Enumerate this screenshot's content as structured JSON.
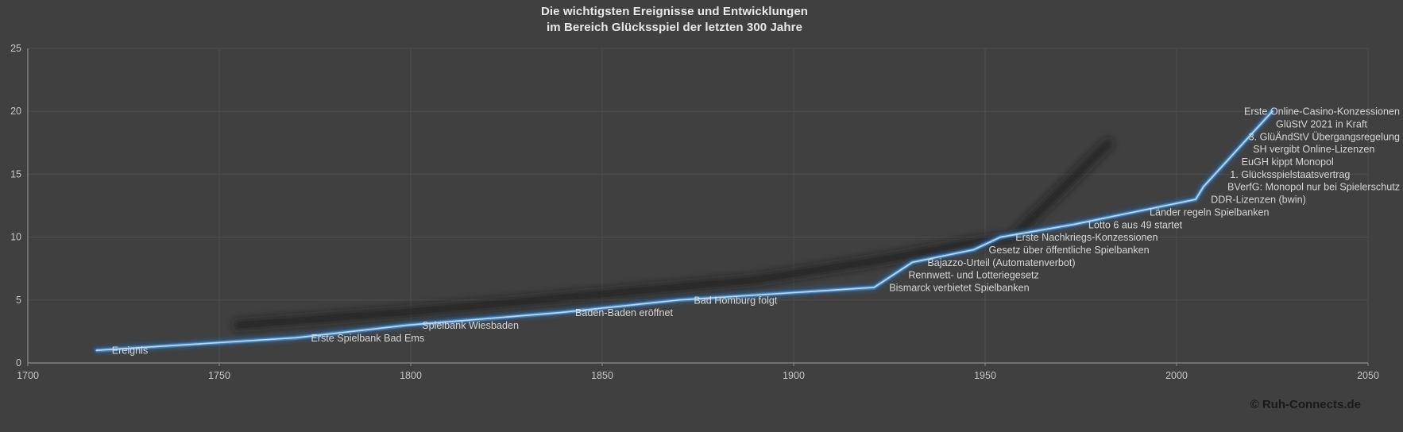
{
  "title": {
    "line1": "Die wichtigsten Ereignisse und Entwicklungen",
    "line2": "im Bereich Glücksspiel der letzten 300 Jahre"
  },
  "copyright": "© Ruh-Connects.de",
  "colors": {
    "background": "#404040",
    "grid": "#4e4e4e",
    "axis": "#8c8c8c",
    "tick_label": "#c7c7c7",
    "event_label": "#d6d6d6",
    "title": "#e8e8e8",
    "copyright": "#1a1a1a",
    "line_core": "#b9d8f2",
    "line_main": "#4f8fcc",
    "line_glow": "#2a6099",
    "shadow": "#1d1d1d"
  },
  "chart_data": {
    "type": "line",
    "title": "Die wichtigsten Ereignisse und Entwicklungen im Bereich Glücksspiel der letzten 300 Jahre",
    "series_name": "Ereignis",
    "xlabel": "",
    "ylabel": "",
    "xlim": [
      1700,
      2050
    ],
    "ylim": [
      0,
      25
    ],
    "x_ticks": [
      1700,
      1750,
      1800,
      1850,
      1900,
      1950,
      2000,
      2050
    ],
    "y_ticks": [
      0,
      5,
      10,
      15,
      20,
      25
    ],
    "grid": true,
    "legend": "none",
    "events": [
      {
        "label": "Ereignis",
        "year": 1718,
        "value": 1
      },
      {
        "label": "Erste Spielbank Bad Ems",
        "year": 1770,
        "value": 2
      },
      {
        "label": "Spielbank Wiesbaden",
        "year": 1799,
        "value": 3
      },
      {
        "label": "Baden-Baden eröffnet",
        "year": 1839,
        "value": 4
      },
      {
        "label": "Bad Homburg folgt",
        "year": 1870,
        "value": 5
      },
      {
        "label": "Bismarck verbietet Spielbanken",
        "year": 1921,
        "value": 6
      },
      {
        "label": "Rennwett- und Lotteriegesetz",
        "year": 1926,
        "value": 7
      },
      {
        "label": "Bajazzo-Urteil (Automatenverbot)",
        "year": 1931,
        "value": 8
      },
      {
        "label": "Gesetz über öffentliche Spielbanken",
        "year": 1947,
        "value": 9
      },
      {
        "label": "Erste Nachkriegs-Konzessionen",
        "year": 1954,
        "value": 10
      },
      {
        "label": "Lotto 6 aus 49 startet",
        "year": 1973,
        "value": 11
      },
      {
        "label": "Länder regeln Spielbanken",
        "year": 1989,
        "value": 12
      },
      {
        "label": "DDR-Lizenzen (bwin)",
        "year": 2005,
        "value": 13
      },
      {
        "label": "BVerfG: Monopol nur bei Spielerschutz",
        "year": 2007,
        "value": 14,
        "align": "right"
      },
      {
        "label": "1. Glücksspielstaatsvertrag",
        "year": 2010,
        "value": 15
      },
      {
        "label": "EuGH kippt Monopol",
        "year": 2013,
        "value": 16
      },
      {
        "label": "SH vergibt Online-Lizenzen",
        "year": 2016,
        "value": 17
      },
      {
        "label": "3. GlüÄndStV Übergangsregelung",
        "year": 2019,
        "value": 18,
        "align": "right"
      },
      {
        "label": "GlüStV 2021 in Kraft",
        "year": 2022,
        "value": 19
      },
      {
        "label": "Erste Online-Casino-Konzessionen",
        "year": 2025,
        "value": 20,
        "align": "right"
      }
    ],
    "shadow_smudge": [
      [
        1755,
        3.0
      ],
      [
        1801,
        4.1
      ],
      [
        1851,
        5.5
      ],
      [
        1890,
        6.6
      ],
      [
        1925,
        8.3
      ],
      [
        1948,
        9.6
      ],
      [
        1957,
        9.9
      ],
      [
        1982,
        17.4
      ]
    ]
  }
}
